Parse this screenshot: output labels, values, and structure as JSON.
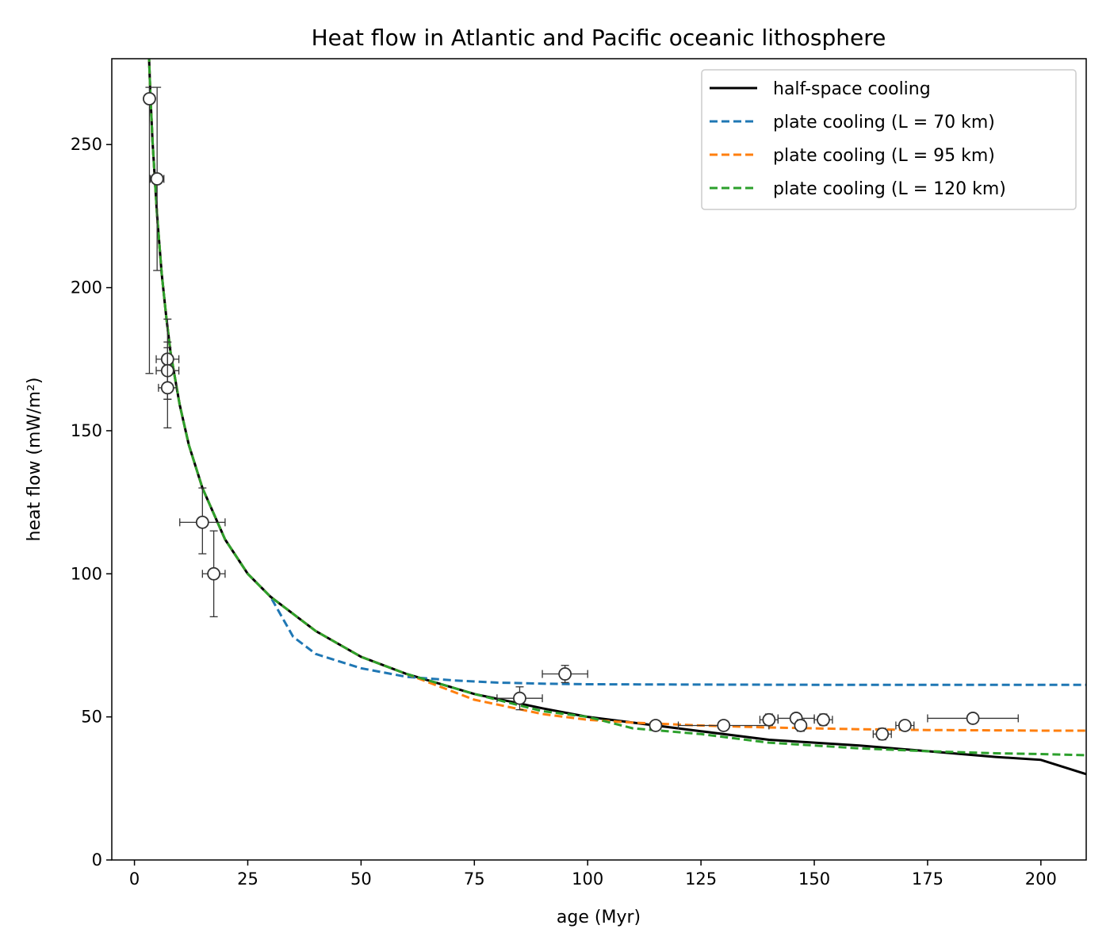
{
  "chart_data": {
    "type": "line",
    "title": "Heat flow in Atlantic and Pacific oceanic lithosphere",
    "xlabel": "age (Myr)",
    "ylabel": "heat flow (mW/m²)",
    "xlim": [
      -5,
      210
    ],
    "ylim": [
      0,
      280
    ],
    "x_ticks": [
      0,
      25,
      50,
      75,
      100,
      125,
      150,
      175,
      200
    ],
    "y_ticks": [
      0,
      50,
      100,
      150,
      200,
      250
    ],
    "grid": false,
    "legend_position": "upper right",
    "series": [
      {
        "name": "half-space cooling",
        "style": "solid",
        "color": "#000000",
        "x": [
          3,
          3.5,
          4,
          5,
          6,
          7,
          8,
          10,
          12,
          15,
          20,
          25,
          30,
          40,
          50,
          60,
          75,
          90,
          100,
          110,
          125,
          140,
          150,
          160,
          175,
          190,
          200,
          210
        ],
        "y": [
          290,
          268,
          251,
          225,
          205,
          190,
          177,
          159,
          145,
          130,
          112,
          100,
          92,
          80,
          71,
          65,
          58,
          53,
          50,
          48,
          45,
          42,
          41,
          40,
          38,
          36,
          35,
          30
        ]
      },
      {
        "name": "plate cooling (L = 70 km)",
        "style": "dashed",
        "color": "#1f77b4",
        "x": [
          3,
          3.5,
          4,
          5,
          6,
          7,
          8,
          10,
          12,
          15,
          20,
          25,
          30,
          35,
          40,
          50,
          60,
          70,
          80,
          90,
          100,
          125,
          150,
          175,
          200,
          210
        ],
        "y": [
          290,
          268,
          251,
          225,
          205,
          190,
          177,
          159,
          145,
          130,
          112,
          100,
          92,
          78,
          72,
          67,
          64,
          62.8,
          62,
          61.6,
          61.4,
          61.3,
          61.2,
          61.2,
          61.2,
          61.2
        ]
      },
      {
        "name": "plate cooling (L = 95 km)",
        "style": "dashed",
        "color": "#ff7f0e",
        "x": [
          3,
          3.5,
          4,
          5,
          6,
          7,
          8,
          10,
          12,
          15,
          20,
          25,
          30,
          40,
          50,
          60,
          75,
          90,
          100,
          110,
          125,
          140,
          150,
          160,
          175,
          190,
          200,
          210
        ],
        "y": [
          290,
          268,
          251,
          225,
          205,
          190,
          177,
          159,
          145,
          130,
          112,
          100,
          92,
          80,
          71,
          65,
          56,
          51,
          49,
          48,
          47,
          46.3,
          46,
          45.7,
          45.4,
          45.3,
          45.2,
          45.2
        ]
      },
      {
        "name": "plate cooling (L = 120 km)",
        "style": "dashed",
        "color": "#2ca02c",
        "x": [
          3,
          3.5,
          4,
          5,
          6,
          7,
          8,
          10,
          12,
          15,
          20,
          25,
          30,
          40,
          50,
          60,
          75,
          90,
          100,
          110,
          125,
          140,
          150,
          160,
          175,
          190,
          200,
          210
        ],
        "y": [
          290,
          268,
          251,
          225,
          205,
          190,
          177,
          159,
          145,
          130,
          112,
          100,
          92,
          80,
          71,
          65,
          58,
          52,
          50,
          46,
          44,
          41,
          40,
          39,
          38,
          37.3,
          37,
          36.6
        ]
      }
    ],
    "observations": {
      "marker": "open-circle",
      "points": [
        {
          "x": 3.3,
          "y": 266,
          "xerr": 0,
          "yerr_low": 96,
          "yerr_high": 4
        },
        {
          "x": 5,
          "y": 238,
          "xerr": 1.5,
          "yerr_low": 32,
          "yerr_high": 32
        },
        {
          "x": 7.3,
          "y": 175,
          "xerr": 2.5,
          "yerr_low": 14,
          "yerr_high": 14
        },
        {
          "x": 7.3,
          "y": 171,
          "xerr": 2.5,
          "yerr_low": 10,
          "yerr_high": 10
        },
        {
          "x": 7.3,
          "y": 165,
          "xerr": 2,
          "yerr_low": 14,
          "yerr_high": 14
        },
        {
          "x": 15,
          "y": 118,
          "xerr": 5,
          "yerr_low": 11,
          "yerr_high": 12
        },
        {
          "x": 17.5,
          "y": 100,
          "xerr": 2.5,
          "yerr_low": 15,
          "yerr_high": 15
        },
        {
          "x": 85,
          "y": 56.5,
          "xerr": 5,
          "yerr_low": 4,
          "yerr_high": 4
        },
        {
          "x": 95,
          "y": 65,
          "xerr": 5,
          "yerr_low": 3,
          "yerr_high": 3
        },
        {
          "x": 115,
          "y": 47,
          "xerr": 0,
          "yerr_low": 1,
          "yerr_high": 1
        },
        {
          "x": 130,
          "y": 47,
          "xerr": 10,
          "yerr_low": 1.5,
          "yerr_high": 1.5
        },
        {
          "x": 140,
          "y": 49,
          "xerr": 2,
          "yerr_low": 2,
          "yerr_high": 2
        },
        {
          "x": 146,
          "y": 49.5,
          "xerr": 4,
          "yerr_low": 1.5,
          "yerr_high": 1.5
        },
        {
          "x": 147,
          "y": 47,
          "xerr": 0,
          "yerr_low": 2,
          "yerr_high": 2
        },
        {
          "x": 152,
          "y": 49,
          "xerr": 2,
          "yerr_low": 2,
          "yerr_high": 2
        },
        {
          "x": 165,
          "y": 44,
          "xerr": 2,
          "yerr_low": 2,
          "yerr_high": 2
        },
        {
          "x": 170,
          "y": 47,
          "xerr": 2,
          "yerr_low": 1.5,
          "yerr_high": 1.5
        },
        {
          "x": 185,
          "y": 49.5,
          "xerr": 10,
          "yerr_low": 0,
          "yerr_high": 0
        }
      ]
    }
  }
}
